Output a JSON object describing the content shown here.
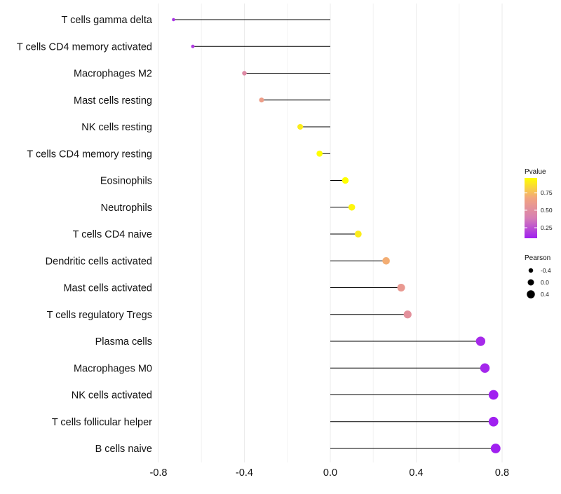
{
  "chart_data": {
    "type": "lollipop",
    "title": "",
    "xlabel": "",
    "ylabel": "",
    "xlim": [
      -0.8,
      0.8
    ],
    "xticks": [
      "-0.8",
      "-0.4",
      "0.0",
      "0.4",
      "0.8"
    ],
    "xtick_values": [
      -0.8,
      -0.4,
      0.0,
      0.4,
      0.8
    ],
    "points": [
      {
        "label": "T cells gamma delta",
        "pearson": -0.73,
        "pvalue": 0.15
      },
      {
        "label": "T cells CD4 memory activated",
        "pearson": -0.64,
        "pvalue": 0.18
      },
      {
        "label": "Macrophages M2",
        "pearson": -0.4,
        "pvalue": 0.47
      },
      {
        "label": "Mast cells resting",
        "pearson": -0.32,
        "pvalue": 0.62
      },
      {
        "label": "NK cells resting",
        "pearson": -0.14,
        "pvalue": 0.9
      },
      {
        "label": "T cells CD4 memory resting",
        "pearson": -0.05,
        "pvalue": 0.96
      },
      {
        "label": "Eosinophils",
        "pearson": 0.07,
        "pvalue": 0.96
      },
      {
        "label": "Neutrophils",
        "pearson": 0.1,
        "pvalue": 0.93
      },
      {
        "label": "T cells CD4 naive",
        "pearson": 0.13,
        "pvalue": 0.9
      },
      {
        "label": "Dendritic cells activated",
        "pearson": 0.26,
        "pvalue": 0.7
      },
      {
        "label": "Mast cells activated",
        "pearson": 0.33,
        "pvalue": 0.58
      },
      {
        "label": "T cells regulatory  Tregs",
        "pearson": 0.36,
        "pvalue": 0.52
      },
      {
        "label": "Plasma cells",
        "pearson": 0.7,
        "pvalue": 0.13
      },
      {
        "label": "Macrophages M0",
        "pearson": 0.72,
        "pvalue": 0.12
      },
      {
        "label": "NK cells activated",
        "pearson": 0.76,
        "pvalue": 0.1
      },
      {
        "label": "T cells follicular helper",
        "pearson": 0.76,
        "pvalue": 0.1
      },
      {
        "label": "B cells naive",
        "pearson": 0.77,
        "pvalue": 0.1
      }
    ],
    "legend_color": {
      "title": "Pvalue",
      "ticks": [
        "0.75",
        "0.50",
        "0.25"
      ],
      "tick_values": [
        0.75,
        0.5,
        0.25
      ],
      "range": [
        0.1,
        0.96
      ],
      "colors": [
        "#a020f0",
        "#d67fb5",
        "#f2a57f",
        "#ffff00"
      ]
    },
    "legend_size": {
      "title": "Pearson",
      "ticks": [
        "-0.4",
        "0.0",
        "0.4"
      ],
      "tick_values": [
        -0.4,
        0.0,
        0.4
      ]
    },
    "legend_placement": "right"
  }
}
